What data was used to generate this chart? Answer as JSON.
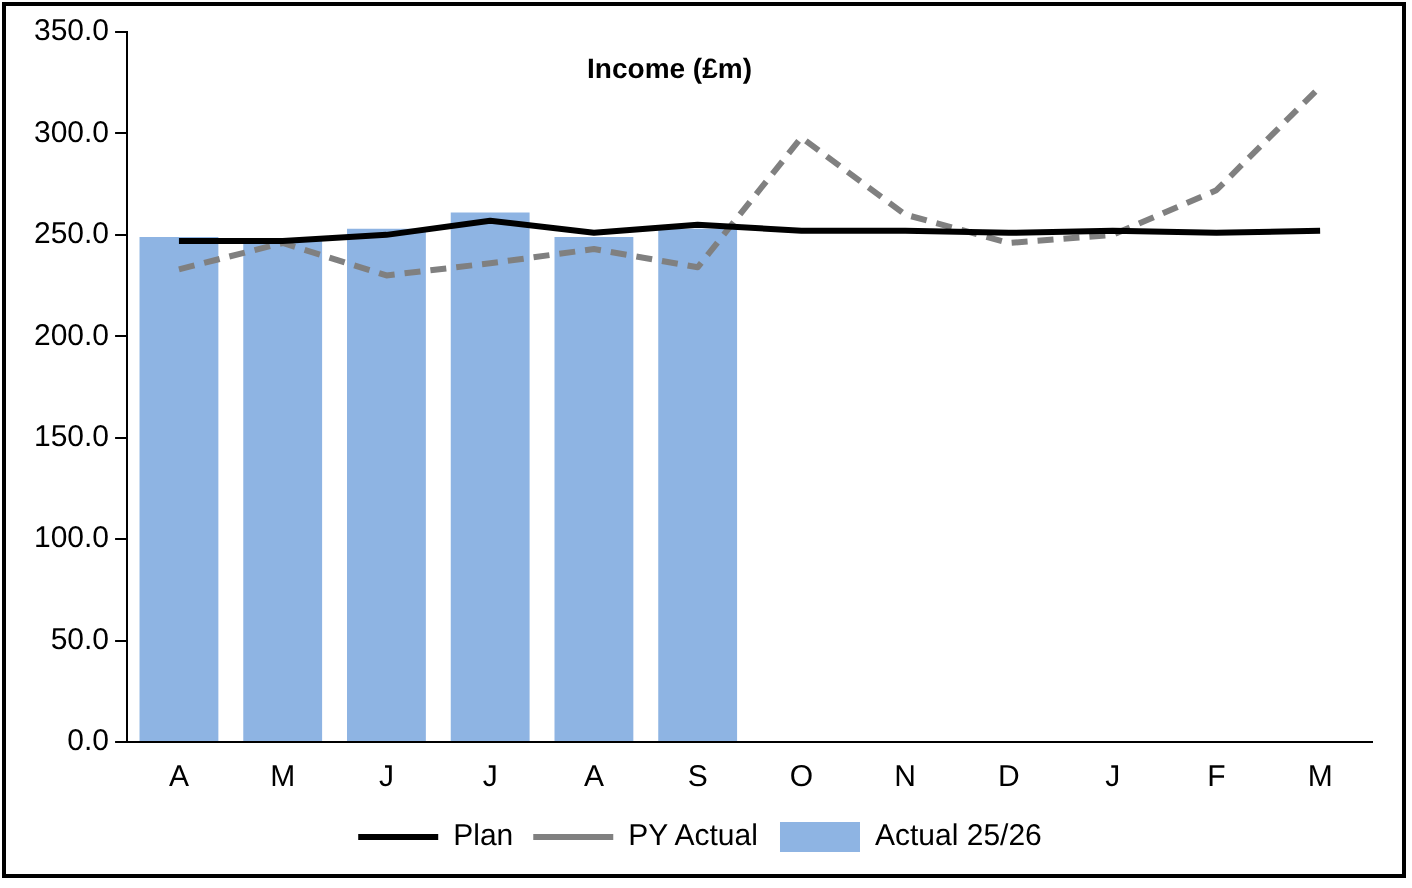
{
  "chart_data": {
    "type": "bar",
    "title": "Income (£m)",
    "categories": [
      "A",
      "M",
      "J",
      "J",
      "A",
      "S",
      "O",
      "N",
      "D",
      "J",
      "F",
      "M"
    ],
    "series": [
      {
        "name": "Actual 25/26",
        "color": "#8eb4e3",
        "values": [
          249,
          247,
          253,
          261,
          249,
          253,
          null,
          null,
          null,
          null,
          null,
          null
        ]
      },
      {
        "name": "Plan",
        "type": "line",
        "color": "#000000",
        "line_style": "solid",
        "values": [
          247,
          247,
          250,
          257,
          251,
          255,
          252,
          252,
          251,
          252,
          251,
          252
        ]
      },
      {
        "name": "PY Actual",
        "type": "line",
        "color": "#808080",
        "line_style": "dashed",
        "values": [
          233,
          246,
          230,
          236,
          243,
          234,
          298,
          260,
          246,
          250,
          272,
          323
        ]
      }
    ],
    "ylim": [
      0,
      350
    ],
    "yticks": [
      {
        "value": 0,
        "label": "0.0"
      },
      {
        "value": 50,
        "label": "50.0"
      },
      {
        "value": 100,
        "label": "100.0"
      },
      {
        "value": 150,
        "label": "150.0"
      },
      {
        "value": 200,
        "label": "200.0"
      },
      {
        "value": 250,
        "label": "250.0"
      },
      {
        "value": 300,
        "label": "300.0"
      },
      {
        "value": 350,
        "label": "350.0"
      }
    ],
    "grid": false,
    "legend": "bottom",
    "marker": "none"
  }
}
